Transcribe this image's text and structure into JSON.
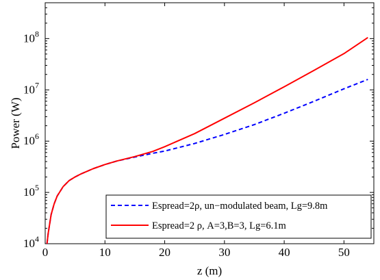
{
  "chart_data": {
    "type": "line",
    "xlabel": "z (m)",
    "ylabel": "Power (W)",
    "xlim": [
      0,
      55
    ],
    "ylim": [
      10000,
      500000000
    ],
    "yscale": "log",
    "grid": false,
    "legend_position": "bottom-right",
    "x_ticks": [
      0,
      10,
      20,
      30,
      40,
      50
    ],
    "y_ticks": [
      {
        "value": 10000,
        "base": "10",
        "exp": "4"
      },
      {
        "value": 100000,
        "base": "10",
        "exp": "5"
      },
      {
        "value": 1000000,
        "base": "10",
        "exp": "6"
      },
      {
        "value": 10000000,
        "base": "10",
        "exp": "7"
      },
      {
        "value": 100000000,
        "base": "10",
        "exp": "8"
      }
    ],
    "series": [
      {
        "name": "Espread=2ρ, un−modulated beam, Lg=9.8m",
        "color": "#0000ff",
        "style": "dashed",
        "x": [
          0.3,
          0.5,
          1,
          1.5,
          2,
          3,
          4,
          5,
          6,
          8,
          10,
          12,
          15,
          18,
          20,
          25,
          30,
          35,
          40,
          45,
          50,
          54
        ],
        "y": [
          10000,
          16000,
          37000,
          60000,
          85000,
          130000,
          170000,
          200000,
          230000,
          290000,
          350000,
          410000,
          490000,
          580000,
          640000,
          900000,
          1350000,
          2100000,
          3500000,
          6000000,
          10500000,
          16000000
        ]
      },
      {
        "name": "Espread=2 ρ, A=3,B=3, Lg=6.1m",
        "color": "#ff0000",
        "style": "solid",
        "x": [
          0.3,
          0.5,
          1,
          1.5,
          2,
          3,
          4,
          5,
          6,
          8,
          10,
          12,
          15,
          18,
          20,
          25,
          30,
          35,
          40,
          45,
          50,
          54
        ],
        "y": [
          10000,
          16000,
          37000,
          60000,
          85000,
          130000,
          170000,
          200000,
          230000,
          290000,
          350000,
          410000,
          500000,
          630000,
          780000,
          1400000,
          2800000,
          5600000,
          11500000,
          24000000,
          51000000,
          105000000
        ]
      }
    ]
  }
}
